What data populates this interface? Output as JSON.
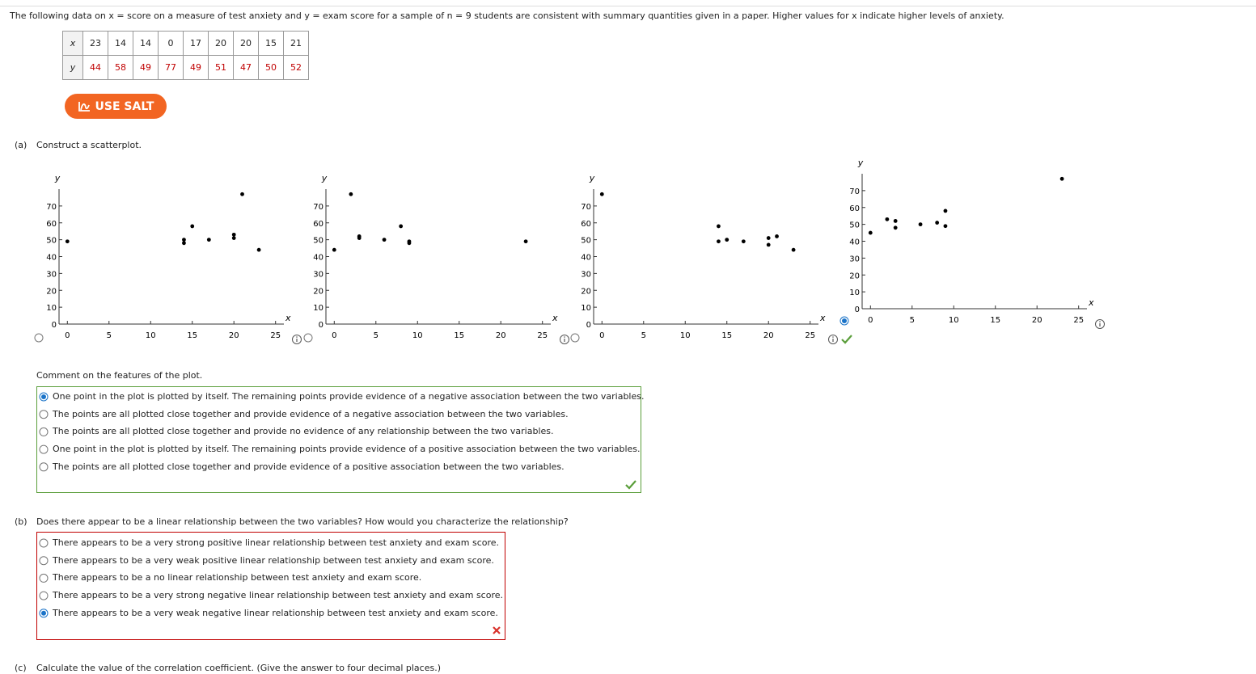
{
  "intro": "The following data on x = score on a measure of test anxiety and y = exam score for a sample of n = 9 students are consistent with summary quantities given in a paper. Higher values for x indicate higher levels of anxiety.",
  "table": {
    "rows": [
      [
        "x",
        23,
        14,
        14,
        0,
        17,
        20,
        20,
        15,
        21
      ],
      [
        "y",
        44,
        58,
        49,
        77,
        49,
        51,
        47,
        50,
        52
      ]
    ]
  },
  "salt_button": "USE SALT",
  "part_a": {
    "label": "(a)",
    "prompt": "Construct a scatterplot.",
    "selected_plot": 3,
    "plots": [
      {
        "type": "scatter",
        "x_label": "x",
        "y_label": "y",
        "x": [
          0,
          14,
          14,
          15,
          17,
          20,
          20,
          21,
          23
        ],
        "y": [
          49,
          50,
          48,
          58,
          50,
          53,
          51,
          77,
          44
        ],
        "xlim": [
          -1,
          26
        ],
        "ylim": [
          0,
          80
        ],
        "xticks": [
          0,
          5,
          10,
          15,
          20,
          25
        ],
        "yticks": [
          0,
          10,
          20,
          30,
          40,
          50,
          60,
          70
        ]
      },
      {
        "type": "scatter",
        "x_label": "x",
        "y_label": "y",
        "x": [
          0,
          2,
          3,
          3,
          6,
          8,
          9,
          9,
          23
        ],
        "y": [
          44,
          77,
          52,
          51,
          50,
          58,
          49,
          48,
          49
        ],
        "xlim": [
          -1,
          26
        ],
        "ylim": [
          0,
          80
        ],
        "xticks": [
          0,
          5,
          10,
          15,
          20,
          25
        ],
        "yticks": [
          0,
          10,
          20,
          30,
          40,
          50,
          60,
          70
        ]
      },
      {
        "type": "scatter",
        "x_label": "x",
        "y_label": "y",
        "x": [
          0,
          14,
          14,
          15,
          17,
          20,
          20,
          21,
          23
        ],
        "y": [
          77,
          58,
          49,
          50,
          49,
          51,
          47,
          52,
          44
        ],
        "xlim": [
          -1,
          26
        ],
        "ylim": [
          0,
          80
        ],
        "xticks": [
          0,
          5,
          10,
          15,
          20,
          25
        ],
        "yticks": [
          0,
          10,
          20,
          30,
          40,
          50,
          60,
          70
        ]
      },
      {
        "type": "scatter",
        "x_label": "x",
        "y_label": "y",
        "x": [
          0,
          2,
          3,
          3,
          6,
          8,
          9,
          9,
          23
        ],
        "y": [
          45,
          53,
          52,
          48,
          50,
          51,
          58,
          49,
          77
        ],
        "xlim": [
          -1,
          26
        ],
        "ylim": [
          0,
          80
        ],
        "xticks": [
          0,
          5,
          10,
          15,
          20,
          25
        ],
        "yticks": [
          0,
          10,
          20,
          30,
          40,
          50,
          60,
          70
        ]
      }
    ],
    "comment_prompt": "Comment on the features of the plot.",
    "selected_option": 0,
    "options": [
      "One point in the plot is plotted by itself. The remaining points provide evidence of a negative association between the two variables.",
      "The points are all plotted close together and provide evidence of a negative association between the two variables.",
      "The points are all plotted close together and provide no evidence of any relationship between the two variables.",
      "One point in the plot is plotted by itself. The remaining points provide evidence of a positive association between the two variables.",
      "The points are all plotted close together and provide evidence of a positive association between the two variables."
    ]
  },
  "part_b": {
    "label": "(b)",
    "prompt": "Does there appear to be a linear relationship between the two variables? How would you characterize the relationship?",
    "selected_option": 4,
    "options": [
      "There appears to be a very strong positive linear relationship between test anxiety and exam score.",
      "There appears to be a very weak positive linear relationship between test anxiety and exam score.",
      "There appears to be a no linear relationship between test anxiety and exam score.",
      "There appears to be a very strong negative linear relationship between test anxiety and exam score.",
      "There appears to be a very weak negative linear relationship between test anxiety and exam score."
    ]
  },
  "part_c": {
    "label": "(c)",
    "prompt": "Calculate the value of the correlation coefficient. (Give the answer to four decimal places.)"
  }
}
